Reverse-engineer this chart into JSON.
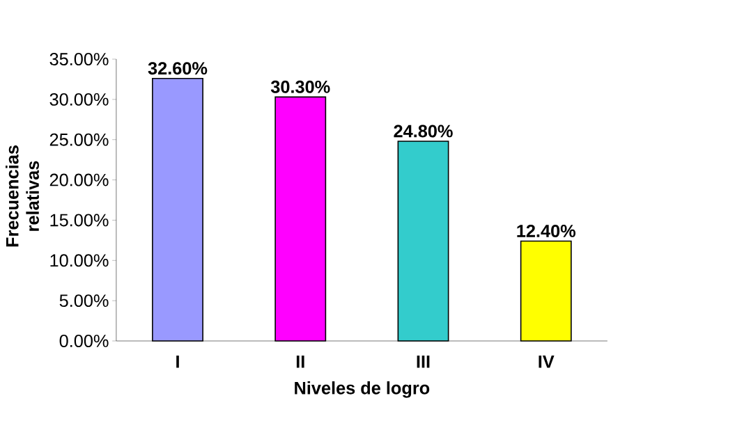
{
  "chart_data": {
    "type": "bar",
    "xlabel": "Niveles de logro",
    "ylabel": "Frecuencias relativas",
    "categories": [
      "I",
      "II",
      "III",
      "IV"
    ],
    "values": [
      32.6,
      30.3,
      24.8,
      12.4
    ],
    "value_labels": [
      "32.60%",
      "30.30%",
      "24.80%",
      "12.40%"
    ],
    "colors": [
      "#9999ff",
      "#ff00ff",
      "#33cccc",
      "#ffff00"
    ],
    "ylim": [
      0,
      35
    ],
    "yticks": [
      {
        "value": 0,
        "label": "0.00%"
      },
      {
        "value": 5,
        "label": "5.00%"
      },
      {
        "value": 10,
        "label": "10.00%"
      },
      {
        "value": 15,
        "label": "15.00%"
      },
      {
        "value": 20,
        "label": "20.00%"
      },
      {
        "value": 25,
        "label": "25.00%"
      },
      {
        "value": 30,
        "label": "30.00%"
      },
      {
        "value": 35,
        "label": "35.00%"
      }
    ]
  }
}
